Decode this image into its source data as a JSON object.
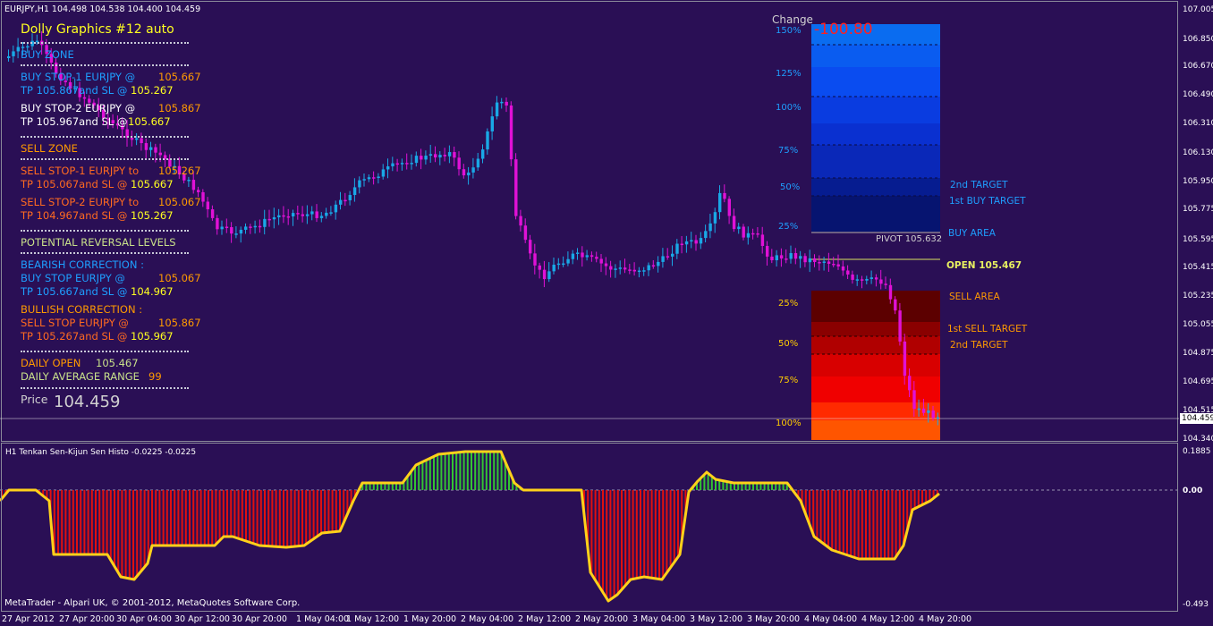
{
  "header": {
    "symbol_info": "EURJPY,H1  104.498 104.538 104.400 104.459"
  },
  "panel": {
    "title": "Dolly Graphics #12 auto",
    "buy_zone": "BUY ZONE",
    "buy_stop1_label": "BUY STOP-1  EURJPY  @",
    "buy_stop1_price": "105.667",
    "buy_stop1_tp_label": "TP 105.867and SL @",
    "buy_stop1_sl": "105.267",
    "buy_stop2_label": "BUY STOP-2  EURJPY  @",
    "buy_stop2_price": "105.867",
    "buy_stop2_tp_label": "TP 105.967and SL @",
    "buy_stop2_sl": "105.667",
    "sell_zone": "SELL ZONE",
    "sell_stop1_label": "SELL STOP-1  EURJPY  to",
    "sell_stop1_price": "105.267",
    "sell_stop1_tp_label": "TP 105.067and SL @",
    "sell_stop1_sl": "105.667",
    "sell_stop2_label": "SELL STOP-2  EURJPY  to",
    "sell_stop2_price": "105.067",
    "sell_stop2_tp_label": "TP 104.967and SL @",
    "sell_stop2_sl": "105.267",
    "reversal": "POTENTIAL REVERSAL LEVELS",
    "bearish": "BEARISH CORRECTION :",
    "bearish_buy_label": "BUY STOP EURJPY  @",
    "bearish_buy_price": "105.067",
    "bearish_tp_label": "TP 105.667and SL @",
    "bearish_sl": "104.967",
    "bullish": "BULLISH CORRECTION :",
    "bullish_sell_label": "SELL STOP EURJPY  @",
    "bullish_sell_price": "105.867",
    "bullish_tp_label": "TP 105.267and SL @",
    "bullish_sl": "105.967",
    "daily_open_label": "DAILY OPEN",
    "daily_open_value": "105.467",
    "dar_label": "DAILY AVERAGE RANGE",
    "dar_value": "99",
    "price_label": "Price",
    "price_value": "104.459"
  },
  "change": {
    "label": "Change",
    "value": "-100.80"
  },
  "levels": {
    "up": [
      "150%",
      "125%",
      "100%",
      "75%",
      "50%",
      "25%"
    ],
    "down": [
      "25%",
      "50%",
      "75%",
      "100%"
    ],
    "target2_up": "2nd TARGET",
    "target1_up": "1st BUY TARGET",
    "buy_area": "BUY AREA",
    "pivot": "PIVOT 105.632",
    "open": "OPEN 105.467",
    "sell_area": "SELL AREA",
    "target1_down": "1st SELL TARGET",
    "target2_down": "2nd TARGET"
  },
  "price_axis": [
    "107.005",
    "106.850",
    "106.670",
    "106.490",
    "106.310",
    "106.130",
    "105.950",
    "105.775",
    "105.595",
    "105.415",
    "105.235",
    "105.055",
    "104.875",
    "104.695",
    "104.515",
    "104.340"
  ],
  "current_price_tag": "104.459",
  "indicator": {
    "title": "H1  Tenkan Sen-Kijun Sen Histo -0.0225 -0.0225",
    "axis": [
      "0.1885",
      "0.00",
      "-0.493"
    ],
    "copyright": "MetaTrader - Alpari UK, © 2001-2012, MetaQuotes Software Corp."
  },
  "time_axis": [
    "27 Apr 2012",
    "27 Apr 20:00",
    "30 Apr 04:00",
    "30 Apr 12:00",
    "30 Apr 20:00",
    "1 May 04:00",
    "1 May 12:00",
    "1 May 20:00",
    "2 May 04:00",
    "2 May 12:00",
    "2 May 20:00",
    "3 May 04:00",
    "3 May 12:00",
    "3 May 20:00",
    "4 May 04:00",
    "4 May 12:00",
    "4 May 20:00"
  ],
  "colors": {
    "bg": "#2a0f55",
    "bull": "#19a8e6",
    "bear": "#e011d6",
    "hist_pos": "#33c533",
    "hist_neg": "#e01010",
    "hist_line": "#ffd11a"
  }
}
